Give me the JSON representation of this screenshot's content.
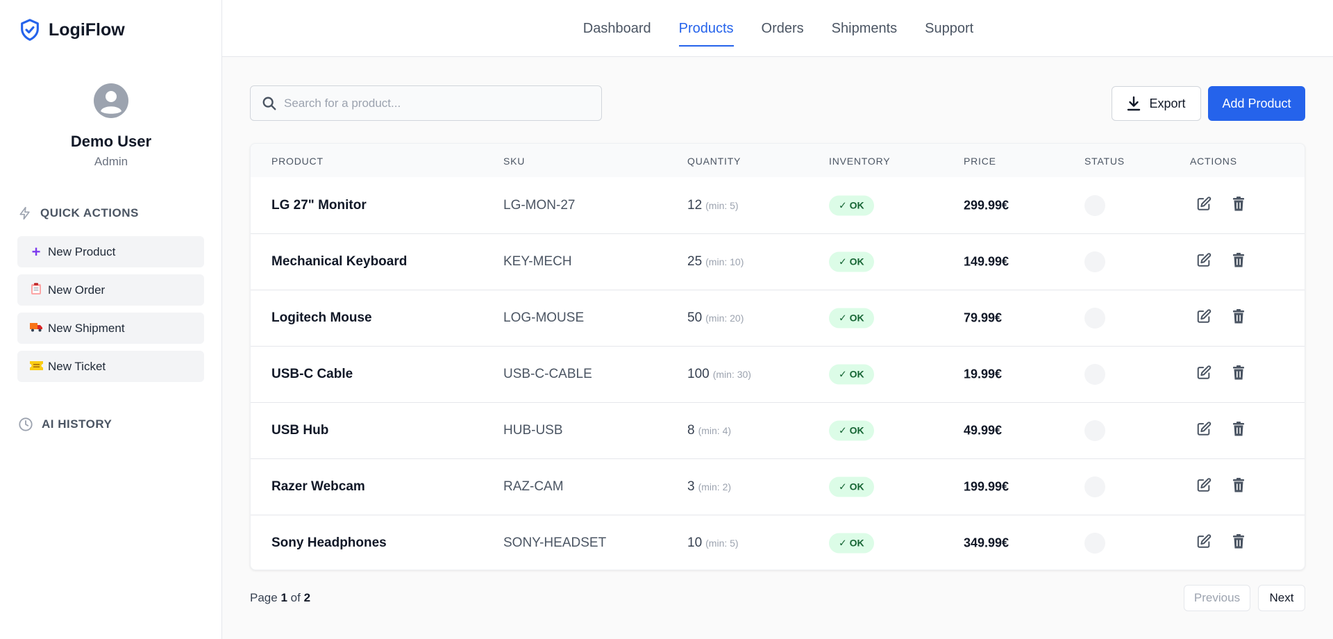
{
  "app": {
    "name": "LogiFlow",
    "accent": "#2563eb"
  },
  "user": {
    "name": "Demo User",
    "role": "Admin"
  },
  "sidebar": {
    "quick_actions_title": "QUICK ACTIONS",
    "quick_actions": [
      {
        "label": "New Product",
        "icon": "plus-icon"
      },
      {
        "label": "New Order",
        "icon": "clipboard-icon"
      },
      {
        "label": "New Shipment",
        "icon": "truck-icon"
      },
      {
        "label": "New Ticket",
        "icon": "ticket-icon"
      }
    ],
    "ai_history_title": "AI HISTORY"
  },
  "nav": {
    "tabs": [
      {
        "label": "Dashboard"
      },
      {
        "label": "Products",
        "active": true
      },
      {
        "label": "Orders"
      },
      {
        "label": "Shipments"
      },
      {
        "label": "Support"
      }
    ]
  },
  "toolbar": {
    "search_placeholder": "Search for a product...",
    "search_value": "",
    "export_label": "Export",
    "add_label": "Add Product"
  },
  "table": {
    "columns": [
      "PRODUCT",
      "SKU",
      "QUANTITY",
      "INVENTORY",
      "PRICE",
      "STATUS",
      "ACTIONS"
    ],
    "rows": [
      {
        "product": "LG 27\" Monitor",
        "sku": "LG-MON-27",
        "qty": "12",
        "min": "(min: 5)",
        "inventory": "✓ OK",
        "price": "299.99€"
      },
      {
        "product": "Mechanical Keyboard",
        "sku": "KEY-MECH",
        "qty": "25",
        "min": "(min: 10)",
        "inventory": "✓ OK",
        "price": "149.99€"
      },
      {
        "product": "Logitech Mouse",
        "sku": "LOG-MOUSE",
        "qty": "50",
        "min": "(min: 20)",
        "inventory": "✓ OK",
        "price": "79.99€"
      },
      {
        "product": "USB-C Cable",
        "sku": "USB-C-CABLE",
        "qty": "100",
        "min": "(min: 30)",
        "inventory": "✓ OK",
        "price": "19.99€"
      },
      {
        "product": "USB Hub",
        "sku": "HUB-USB",
        "qty": "8",
        "min": "(min: 4)",
        "inventory": "✓ OK",
        "price": "49.99€"
      },
      {
        "product": "Razer Webcam",
        "sku": "RAZ-CAM",
        "qty": "3",
        "min": "(min: 2)",
        "inventory": "✓ OK",
        "price": "199.99€"
      },
      {
        "product": "Sony Headphones",
        "sku": "SONY-HEADSET",
        "qty": "10",
        "min": "(min: 5)",
        "inventory": "✓ OK",
        "price": "349.99€"
      }
    ]
  },
  "pagination": {
    "page_label": "Page",
    "current": "1",
    "of_label": "of",
    "total": "2",
    "prev_label": "Previous",
    "next_label": "Next"
  }
}
